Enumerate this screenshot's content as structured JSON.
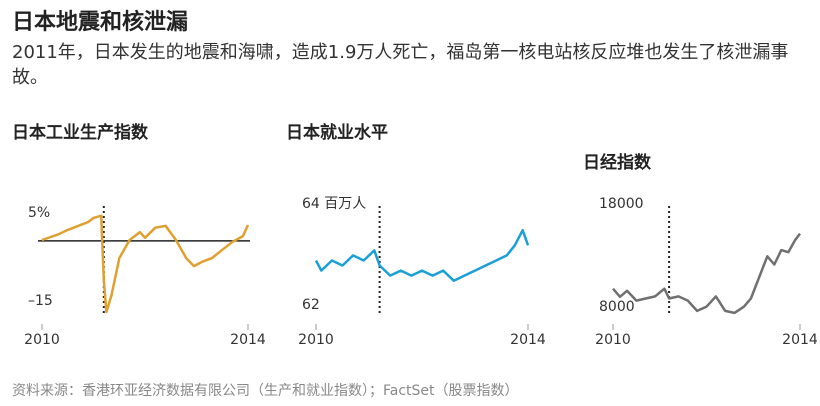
{
  "title": "日本地震和核泄漏",
  "subtitle": "2011年，日本发生的地震和海啸，造成1.9万人死亡，福岛第一核电站核反应堆也发生了核泄漏事故。",
  "source": "资料来源：香港环亚经济数据有限公司（生产和就业指数）；FactSet（股票指数）",
  "chart_data": [
    {
      "type": "line",
      "title": "日本工业生产指数",
      "color": "#e0a030",
      "zero_line": true,
      "marker_x": 2011.2,
      "x": [
        2010.0,
        2010.3,
        2010.5,
        2010.7,
        2010.9,
        2011.0,
        2011.15,
        2011.2,
        2011.25,
        2011.35,
        2011.5,
        2011.7,
        2011.9,
        2012.0,
        2012.2,
        2012.4,
        2012.6,
        2012.8,
        2012.95,
        2013.1,
        2013.3,
        2013.5,
        2013.7,
        2013.9,
        2014.0
      ],
      "values": [
        0.2,
        1.4,
        2.5,
        3.4,
        4.3,
        5.2,
        5.7,
        -8.9,
        -16.1,
        -12.3,
        -3.9,
        0.2,
        2,
        0.7,
        3,
        3.4,
        0.2,
        -3.9,
        -5.7,
        -4.8,
        -3.9,
        -2,
        -0.2,
        1.1,
        3.6
      ],
      "xlim": [
        2010,
        2014
      ],
      "xticks": [
        2010,
        2014
      ],
      "ylim": [
        -17,
        7
      ],
      "yticks": [
        {
          "value": 5,
          "label": "5%"
        },
        {
          "value": -15,
          "label": "–15"
        }
      ]
    },
    {
      "type": "line",
      "title": "日本就业水平",
      "color": "#1a9fd6",
      "marker_x": 2011.2,
      "x": [
        2010.0,
        2010.1,
        2010.3,
        2010.5,
        2010.7,
        2010.9,
        2011.1,
        2011.2,
        2011.4,
        2011.6,
        2011.8,
        2012.0,
        2012.2,
        2012.4,
        2012.6,
        2012.8,
        2013.0,
        2013.2,
        2013.4,
        2013.6,
        2013.75,
        2013.9,
        2014.0
      ],
      "values": [
        63.0,
        62.8,
        63.0,
        62.9,
        63.1,
        63.0,
        63.2,
        62.9,
        62.7,
        62.8,
        62.7,
        62.8,
        62.7,
        62.8,
        62.6,
        62.7,
        62.8,
        62.9,
        63.0,
        63.1,
        63.3,
        63.6,
        63.3
      ],
      "xlim": [
        2010,
        2014
      ],
      "xticks": [
        2010,
        2014
      ],
      "ylim": [
        61.9,
        64
      ],
      "yticks": [
        {
          "value": 64,
          "label": "64 百万人"
        },
        62
      ]
    },
    {
      "type": "line",
      "title": "日经指数",
      "color": "#707070",
      "marker_x": 2011.2,
      "x": [
        2010.0,
        2010.15,
        2010.3,
        2010.5,
        2010.7,
        2010.9,
        2011.1,
        2011.2,
        2011.4,
        2011.6,
        2011.8,
        2012.0,
        2012.2,
        2012.4,
        2012.6,
        2012.8,
        2012.95,
        2013.1,
        2013.3,
        2013.45,
        2013.6,
        2013.75,
        2013.9,
        2014.0
      ],
      "values": [
        10350,
        9570,
        10150,
        9200,
        9400,
        9600,
        10350,
        9400,
        9600,
        9200,
        8200,
        8600,
        9600,
        8200,
        8000,
        8600,
        9400,
        11150,
        13500,
        12700,
        14100,
        13900,
        15100,
        15700
      ],
      "xlim": [
        2010,
        2014
      ],
      "xticks": [
        2010,
        2014
      ],
      "ylim": [
        7700,
        18000
      ],
      "yticks": [
        18000,
        8000
      ]
    }
  ]
}
